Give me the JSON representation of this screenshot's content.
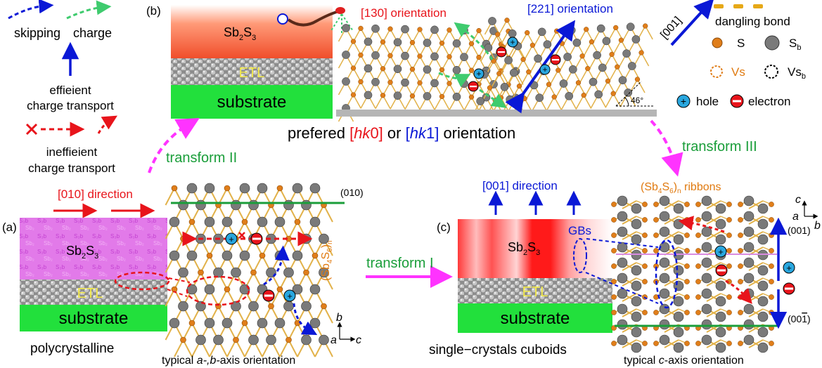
{
  "panels": {
    "a": {
      "label": "(a)",
      "layer_absorber": "Sb",
      "layer_absorber_sub1": "2",
      "layer_absorber_mid": "S",
      "layer_absorber_sub2": "3",
      "layer_etl": "ETL",
      "layer_substrate": "substrate",
      "caption": "polycrystalline",
      "direction_label": "[010] direction",
      "plane_label": "(010)",
      "ribbon_label": "(Sb",
      "ribbon_sub1": "4",
      "ribbon_mid": "S",
      "ribbon_sub2": "6",
      "ribbon_close": ")",
      "ribbon_subn": "n",
      "orientation_caption_pre": "typical ",
      "orientation_caption_axes": "a-,b-",
      "orientation_caption_post": "axis orientation",
      "axis_b": "b",
      "axis_a": "a",
      "axis_c": "c"
    },
    "b": {
      "label": "(b)",
      "layer_absorber": "Sb",
      "layer_absorber_sub1": "2",
      "layer_absorber_mid": "S",
      "layer_absorber_sub2": "3",
      "layer_etl": "ETL",
      "layer_substrate": "substrate",
      "orientation_130": "[130] orientation",
      "orientation_221": "[221] orientation",
      "direction_001": "[001]",
      "angle": "46°",
      "caption_pre": "prefered ",
      "caption_hk0_open": "[",
      "caption_hk0_hk": "hk",
      "caption_hk0_close": "0]",
      "caption_or": " or ",
      "caption_hk1_open": "[",
      "caption_hk1_hk": "hk",
      "caption_hk1_close": "1]",
      "caption_post": " orientation"
    },
    "c": {
      "label": "(c)",
      "layer_absorber": "Sb",
      "layer_absorber_sub1": "2",
      "layer_absorber_mid": "S",
      "layer_absorber_sub2": "3",
      "layer_etl": "ETL",
      "layer_substrate": "substrate",
      "gbs": "GBs",
      "direction_label": "[001] direction",
      "ribbon_label": "(Sb",
      "ribbon_sub1": "4",
      "ribbon_mid": "S",
      "ribbon_sub2": "6",
      "ribbon_close": ")",
      "ribbon_subn": "n",
      "ribbon_post": " ribbons",
      "plane_001": "(001)",
      "plane_00-1": "(00",
      "plane_00-1_bar": "1",
      "plane_00-1_close": ")",
      "caption": "single−crystals cuboids",
      "orientation_caption_pre": "typical ",
      "orientation_caption_axis": "c",
      "orientation_caption_post": "-axis orientation",
      "axis_c": "c",
      "axis_a": "a",
      "axis_b": "b"
    }
  },
  "legend": {
    "skipping": "skipping",
    "charge": "charge",
    "efficient_1": "effieient",
    "efficient_2": "charge transport",
    "inefficient_1": "ineffieient",
    "inefficient_2": "charge transport",
    "dangling": "dangling bond",
    "s": "S",
    "sb": "S",
    "sb_sub": "b",
    "vs": "Vs",
    "vsb": "Vs",
    "vsb_sub": "b",
    "hole": "hole",
    "electron": "electron"
  },
  "transforms": {
    "t1": "transform I",
    "t2": "transform II",
    "t3": "transform III"
  },
  "colors": {
    "magenta": "#ff33ff",
    "green_text": "#1a9e3a",
    "red": "#e8141b",
    "blue": "#0a18d6",
    "substrate": "#22e03c",
    "orange": "#e07a10",
    "atom_gray": "#7a7a7a",
    "atom_orange": "#e07e1a",
    "bond": "#e2b24a"
  },
  "icons": {
    "hole": "plus-circle-icon",
    "electron": "minus-circle-icon",
    "cross": "cross-icon"
  }
}
